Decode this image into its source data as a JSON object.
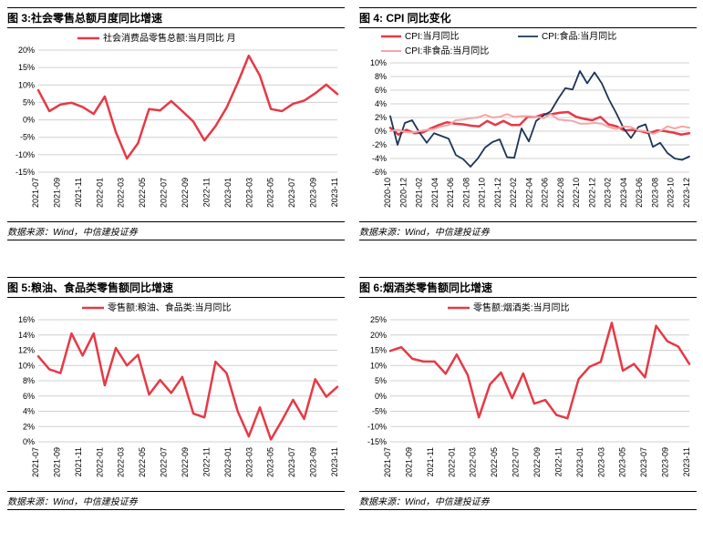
{
  "charts": [
    {
      "id": "c3",
      "title": "图 3:社会零售总额月度同比增速",
      "source": "数据来源：Wind，中信建投证券",
      "type": "line",
      "ylim": [
        -15,
        20
      ],
      "ytick_step": 5,
      "ytick_suffix": "%",
      "xlabels": [
        "2021-07",
        "2021-09",
        "2021-11",
        "2022-01",
        "2022-03",
        "2022-05",
        "2022-07",
        "2022-09",
        "2022-11",
        "2023-01",
        "2023-03",
        "2023-05",
        "2023-07",
        "2023-09",
        "2023-11"
      ],
      "grid_color": "#d0d0d0",
      "background_color": "#ffffff",
      "series": [
        {
          "name": "社会消费品零售总额:当月同比 月",
          "color": "#e63946",
          "width": 2.5,
          "values": [
            8.5,
            2.5,
            4.4,
            4.9,
            3.7,
            1.7,
            6.7,
            -3.5,
            -11.1,
            -6.7,
            3.1,
            2.7,
            5.4,
            2.5,
            -0.5,
            -5.9,
            -1.8,
            3.5,
            10.6,
            18.4,
            12.7,
            3.1,
            2.5,
            4.6,
            5.5,
            7.6,
            10.1,
            7.4
          ]
        }
      ],
      "legend_pos": "top-center"
    },
    {
      "id": "c4",
      "title": "图 4: CPI 同比变化",
      "source": "数据来源：Wind，中信建投证券",
      "type": "line",
      "ylim": [
        -6,
        10
      ],
      "ytick_step": 2,
      "ytick_suffix": "%",
      "xlabels": [
        "2020-10",
        "2020-12",
        "2021-02",
        "2021-04",
        "2021-06",
        "2021-08",
        "2021-10",
        "2021-12",
        "2022-02",
        "2022-04",
        "2022-06",
        "2022-08",
        "2022-10",
        "2022-12",
        "2023-02",
        "2023-04",
        "2023-06",
        "2023-08",
        "2023-10",
        "2023-12"
      ],
      "grid_color": "#d0d0d0",
      "background_color": "#ffffff",
      "series": [
        {
          "name": "CPI:当月同比",
          "color": "#e63946",
          "width": 2.5,
          "values": [
            0.5,
            -0.5,
            0.2,
            -0.3,
            -0.2,
            0.4,
            0.9,
            1.3,
            1.1,
            1.0,
            0.8,
            0.7,
            1.5,
            0.9,
            1.5,
            0.9,
            0.9,
            2.1,
            2.1,
            2.5,
            2.5,
            2.7,
            2.8,
            2.1,
            1.8,
            1.6,
            2.1,
            1.0,
            0.7,
            0.1,
            0.2,
            0.0,
            -0.3,
            0.1,
            0.0,
            -0.2,
            -0.5,
            -0.3
          ]
        },
        {
          "name": "CPI:食品:当月同比",
          "color": "#1d3557",
          "width": 1.8,
          "values": [
            2.2,
            -2.0,
            1.2,
            1.6,
            -0.2,
            -1.7,
            -0.3,
            -0.7,
            -1.1,
            -3.5,
            -4.1,
            -5.2,
            -4.0,
            -2.4,
            -1.6,
            -1.2,
            -3.8,
            -3.9,
            0.4,
            -1.5,
            1.5,
            2.3,
            2.9,
            4.7,
            6.3,
            6.1,
            8.8,
            7.0,
            8.6,
            7.0,
            4.6,
            2.6,
            0.4,
            -1.0,
            0.6,
            1.0,
            -2.3,
            -1.7,
            -3.2,
            -4.0,
            -4.2,
            -3.7
          ]
        },
        {
          "name": "CPI:非食品:当月同比",
          "color": "#f4a6a6",
          "width": 2,
          "values": [
            0.0,
            0.2,
            -0.1,
            -0.2,
            0.0,
            0.2,
            0.3,
            0.7,
            0.9,
            1.6,
            1.7,
            1.9,
            2.0,
            2.4,
            2.0,
            2.1,
            2.5,
            2.1,
            2.2,
            2.2,
            2.1,
            1.9,
            2.5,
            1.7,
            1.6,
            1.5,
            1.1,
            1.1,
            1.2,
            1.1,
            0.6,
            0.3,
            0.7,
            0.6,
            0.1,
            0.0,
            -0.4,
            0.0,
            0.7,
            0.4,
            0.7,
            0.5
          ]
        }
      ],
      "legend_pos": "top-two-row"
    },
    {
      "id": "c5",
      "title": "图 5:粮油、食品类零售额同比增速",
      "source": "数据来源：Wind，中信建投证券",
      "type": "line",
      "ylim": [
        0,
        16
      ],
      "ytick_step": 2,
      "ytick_suffix": "%",
      "xlabels": [
        "2021-07",
        "2021-09",
        "2021-11",
        "2022-01",
        "2022-03",
        "2022-05",
        "2022-07",
        "2022-09",
        "2022-11",
        "2023-01",
        "2023-03",
        "2023-05",
        "2023-07",
        "2023-09",
        "2023-11"
      ],
      "grid_color": "#d0d0d0",
      "background_color": "#ffffff",
      "series": [
        {
          "name": "零售额:粮油、食品类:当月同比",
          "color": "#e63946",
          "width": 2.5,
          "values": [
            11.2,
            9.5,
            9.0,
            14.2,
            11.3,
            14.2,
            7.4,
            12.3,
            10.0,
            11.4,
            6.2,
            8.1,
            6.4,
            8.5,
            3.7,
            3.2,
            10.5,
            9.0,
            4.0,
            0.7,
            4.5,
            0.3,
            2.8,
            5.5,
            3.0,
            8.2,
            5.9,
            7.2
          ]
        }
      ],
      "legend_pos": "top-center"
    },
    {
      "id": "c6",
      "title": "图 6:烟酒类零售额同比增速",
      "source": "数据来源：Wind，中信建投证券",
      "type": "line",
      "ylim": [
        -15,
        25
      ],
      "ytick_step": 5,
      "ytick_suffix": "%",
      "xlabels": [
        "2021-07",
        "2021-09",
        "2021-11",
        "2022-01",
        "2022-03",
        "2022-05",
        "2022-07",
        "2022-09",
        "2022-11",
        "2023-01",
        "2023-03",
        "2023-05",
        "2023-07",
        "2023-09",
        "2023-11"
      ],
      "grid_color": "#d0d0d0",
      "background_color": "#ffffff",
      "series": [
        {
          "name": "零售额:烟酒类:当月同比",
          "color": "#e63946",
          "width": 2.5,
          "values": [
            14.8,
            16.0,
            12.2,
            11.3,
            11.3,
            7.3,
            13.6,
            6.8,
            -7.0,
            3.8,
            7.7,
            -0.7,
            7.4,
            -2.5,
            -1.3,
            -6.2,
            -7.3,
            5.5,
            9.6,
            11.2,
            24.0,
            8.3,
            10.5,
            6.1,
            23.0,
            18.0,
            16.2,
            10.5
          ]
        }
      ],
      "legend_pos": "top-center"
    }
  ],
  "title_fontsize": 12,
  "src_fontsize": 10,
  "label_fontsize": 9
}
